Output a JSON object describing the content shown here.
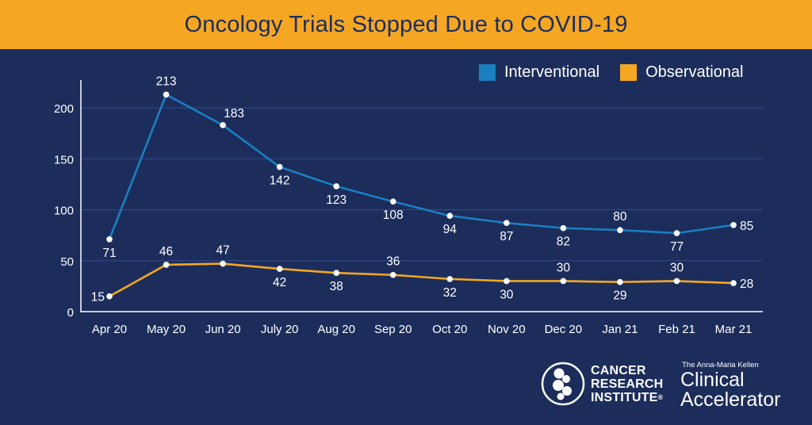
{
  "title": "Oncology Trials Stopped Due to COVID-19",
  "colors": {
    "background": "#1c2d5b",
    "title_bar": "#f5a623",
    "interventional": "#1a7fc1",
    "observational": "#f5a623",
    "axis": "#ffffff",
    "grid": "#2f4680",
    "text": "#ffffff"
  },
  "chart_data": {
    "type": "line",
    "title": "Oncology Trials Stopped Due to COVID-19",
    "xlabel": "",
    "ylabel": "",
    "categories": [
      "Apr 20",
      "May 20",
      "Jun 20",
      "July 20",
      "Aug 20",
      "Sep 20",
      "Oct 20",
      "Nov 20",
      "Dec 20",
      "Jan 21",
      "Feb 21",
      "Mar 21"
    ],
    "series": [
      {
        "name": "Interventional",
        "values": [
          71,
          213,
          183,
          142,
          123,
          108,
          94,
          87,
          82,
          80,
          77,
          85
        ]
      },
      {
        "name": "Observational",
        "values": [
          15,
          46,
          47,
          42,
          38,
          36,
          32,
          30,
          30,
          29,
          30,
          28
        ]
      }
    ],
    "yticks": [
      0,
      50,
      100,
      150,
      200
    ],
    "ylim": [
      0,
      230
    ],
    "grid": true,
    "legend_position": "top-right",
    "data_labels": true
  },
  "legend": [
    {
      "label": "Interventional",
      "color": "#1a7fc1"
    },
    {
      "label": "Observational",
      "color": "#f5a623"
    }
  ],
  "logos": {
    "cri_lines": [
      "CANCER",
      "RESEARCH",
      "INSTITUTE"
    ],
    "registered": "®",
    "clinical_small": "The Anna-Maria Kellen",
    "clinical_line1": "Clinical",
    "clinical_line2": "Accelerator"
  }
}
